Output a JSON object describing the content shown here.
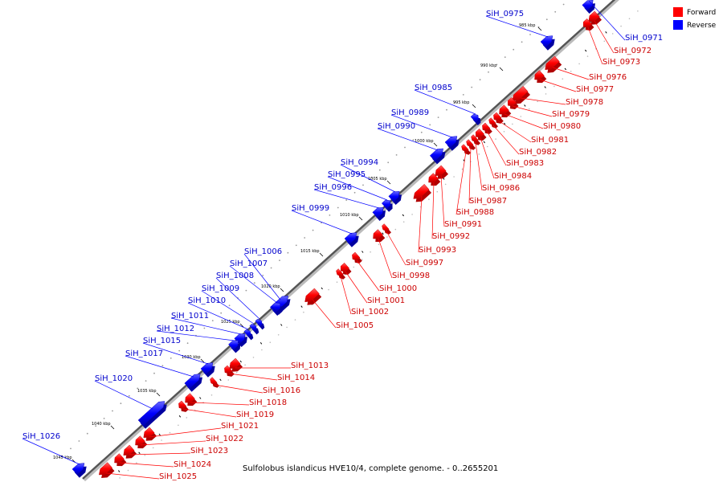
{
  "legend": {
    "forward_label": "Forward",
    "reverse_label": "Reverse",
    "forward_color": "#ff0000",
    "reverse_color": "#0000ff"
  },
  "caption": "Sulfolobus islandicus HVE10/4, complete genome. - 0..2655201",
  "kbp_ticks": [
    "985 kbp",
    "990 kbp",
    "995 kbp",
    "1000 kbp",
    "1005 kbp",
    "1010 kbp",
    "1015 kbp",
    "1020 kbp",
    "1025 kbp",
    "1030 kbp",
    "1035 kbp",
    "1040 kbp",
    "1045 kbp"
  ],
  "genes": {
    "reverse": [
      "SiH_0971",
      "SiH_0975",
      "SiH_0985",
      "SiH_0989",
      "SiH_0990",
      "SiH_0994",
      "SiH_0995",
      "SiH_0996",
      "SiH_0999",
      "SiH_1006",
      "SiH_1007",
      "SiH_1008",
      "SiH_1009",
      "SiH_1010",
      "SiH_1011",
      "SiH_1012",
      "SiH_1015",
      "SiH_1017",
      "SiH_1020",
      "SiH_1026"
    ],
    "forward": [
      "SiH_0972",
      "SiH_0973",
      "SiH_0976",
      "SiH_0977",
      "SiH_0978",
      "SiH_0979",
      "SiH_0980",
      "SiH_0981",
      "SiH_0982",
      "SiH_0983",
      "SiH_0984",
      "SiH_0986",
      "SiH_0987",
      "SiH_0988",
      "SiH_0991",
      "SiH_0992",
      "SiH_0993",
      "SiH_0997",
      "SiH_0998",
      "SiH_1000",
      "SiH_1001",
      "SiH_1002",
      "SiH_1005",
      "SiH_1013",
      "SiH_1014",
      "SiH_1016",
      "SiH_1018",
      "SiH_1019",
      "SiH_1021",
      "SiH_1022",
      "SiH_1023",
      "SiH_1024",
      "SiH_1025"
    ]
  }
}
